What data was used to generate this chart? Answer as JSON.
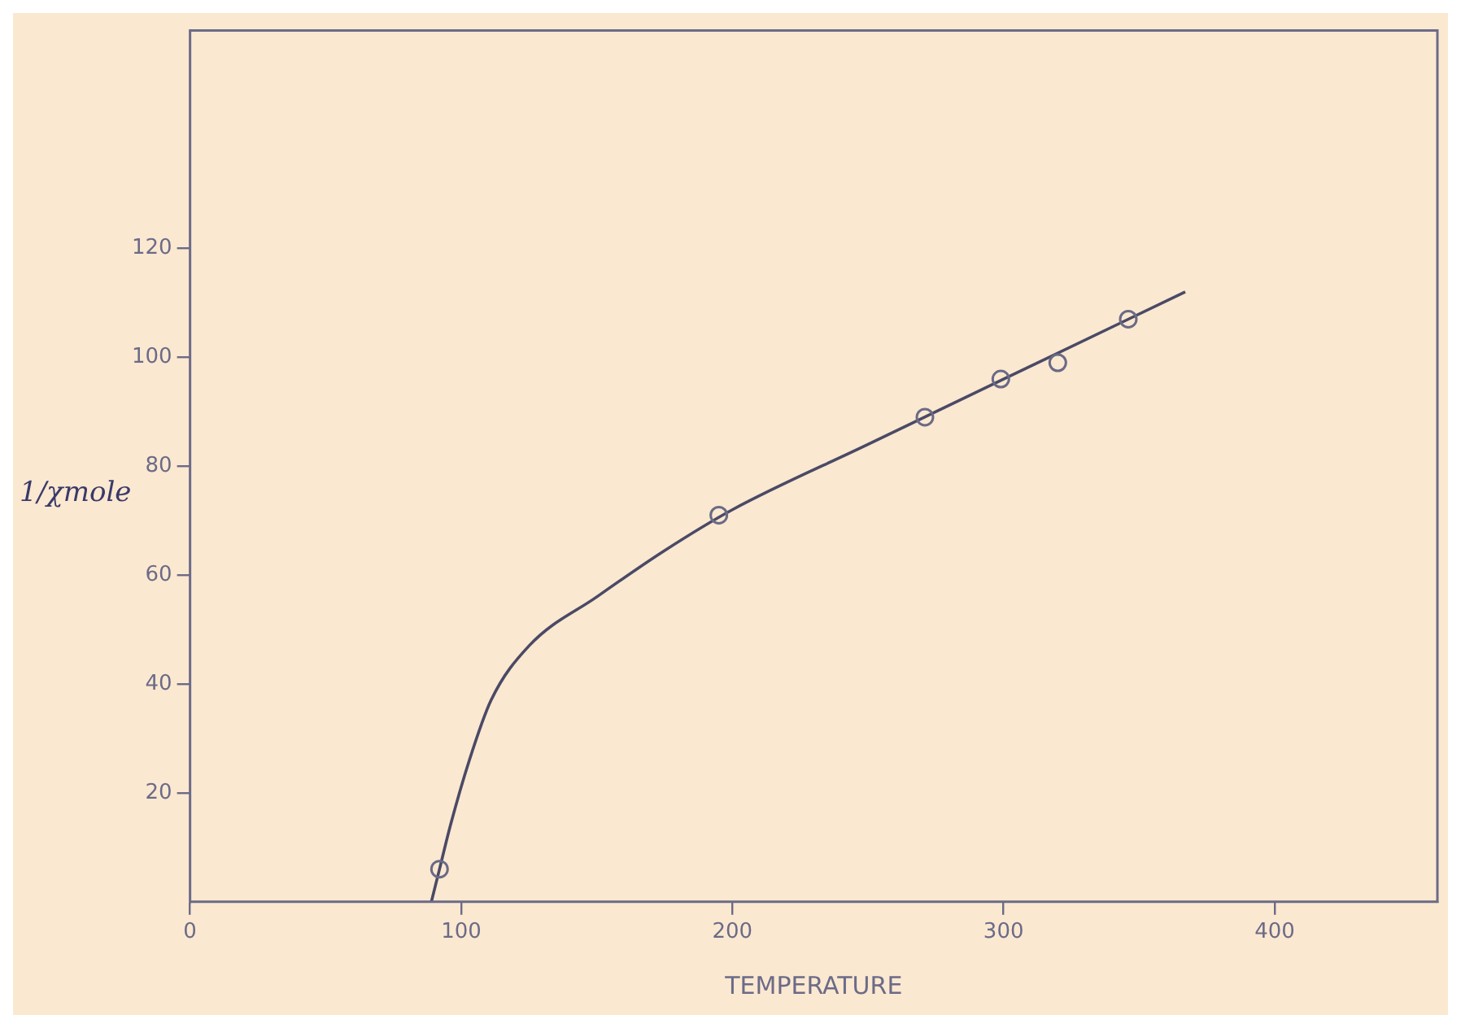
{
  "chart_data": {
    "type": "scatter",
    "xlabel": "TEMPERATURE",
    "ylabel": "1/χmole",
    "xlim": [
      0,
      460
    ],
    "xticks": [
      0,
      100,
      200,
      300,
      400
    ],
    "ylim": [
      0,
      160
    ],
    "yticks": [
      20,
      40,
      60,
      80,
      100,
      120
    ],
    "grid": false,
    "legend": false,
    "marker": "circle",
    "series": [
      {
        "type": "scatter",
        "color": "#6a6a86",
        "x": [
          92,
          195,
          271,
          299,
          320,
          346
        ],
        "values": [
          6,
          71,
          89,
          96,
          99,
          107
        ]
      },
      {
        "type": "line",
        "color": "#4a4a66",
        "marker": "none",
        "x": [
          89,
          92,
          96,
          103,
          111,
          125,
          150,
          175,
          200,
          250,
          300,
          367
        ],
        "values": [
          0,
          6,
          14,
          26,
          37,
          47,
          56,
          64.5,
          72,
          84,
          96,
          112
        ]
      }
    ]
  }
}
